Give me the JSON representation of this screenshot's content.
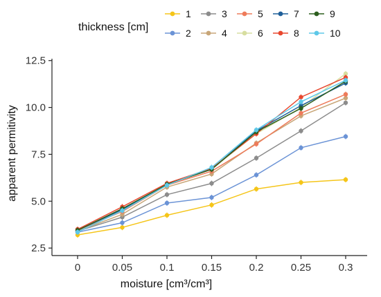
{
  "chart_data": {
    "type": "line",
    "legend_title": "thickness [cm]",
    "legend_position": "top",
    "xlabel": "moisture [cm³/cm³]",
    "ylabel": "apparent permitivity",
    "x": [
      0,
      0.05,
      0.1,
      0.15,
      0.2,
      0.25,
      0.3
    ],
    "x_tick_labels": [
      "0",
      "0.05",
      "0.1",
      "0.15",
      "0.2",
      "0.25",
      "0.3"
    ],
    "ylim": [
      2.1,
      12.6
    ],
    "y_ticks": [
      2.5,
      5.0,
      7.5,
      10.0,
      12.5
    ],
    "y_tick_labels": [
      "2.5",
      "5.0",
      "7.5",
      "10.0",
      "12.5"
    ],
    "grid": false,
    "series": [
      {
        "name": "1",
        "color": "#f5c518",
        "values": [
          3.2,
          3.6,
          4.25,
          4.8,
          5.65,
          6.0,
          6.15
        ]
      },
      {
        "name": "2",
        "color": "#6b93d6",
        "values": [
          3.35,
          3.85,
          4.9,
          5.2,
          6.4,
          7.85,
          8.45
        ]
      },
      {
        "name": "3",
        "color": "#8c8c8c",
        "values": [
          3.4,
          4.15,
          5.35,
          5.95,
          7.3,
          8.75,
          10.25
        ]
      },
      {
        "name": "4",
        "color": "#c8a678",
        "values": [
          3.4,
          4.3,
          5.75,
          6.45,
          8.1,
          9.55,
          10.5
        ]
      },
      {
        "name": "5",
        "color": "#ee7b5a",
        "values": [
          3.45,
          4.45,
          5.85,
          6.6,
          8.05,
          9.7,
          10.7
        ]
      },
      {
        "name": "6",
        "color": "#d7dea0",
        "values": [
          3.45,
          4.55,
          5.9,
          6.7,
          8.6,
          10.0,
          11.8
        ]
      },
      {
        "name": "7",
        "color": "#1f5f99",
        "values": [
          3.45,
          4.55,
          5.9,
          6.7,
          8.75,
          10.1,
          11.3
        ]
      },
      {
        "name": "8",
        "color": "#e8472e",
        "values": [
          3.5,
          4.7,
          5.95,
          6.75,
          8.6,
          10.55,
          11.6
        ]
      },
      {
        "name": "9",
        "color": "#2c5e1e",
        "values": [
          3.45,
          4.6,
          5.9,
          6.7,
          8.7,
          9.95,
          11.4
        ]
      },
      {
        "name": "10",
        "color": "#5ec8e8",
        "values": [
          3.35,
          4.5,
          5.85,
          6.8,
          8.8,
          10.3,
          11.45
        ]
      }
    ]
  }
}
